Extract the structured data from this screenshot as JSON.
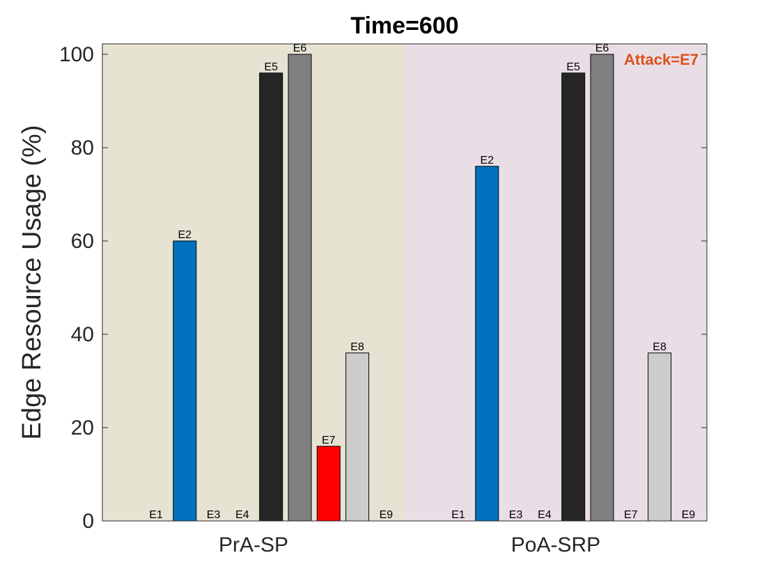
{
  "chart_data": {
    "type": "bar",
    "title": "Time=600",
    "ylabel": "Edge Resource Usage (%)",
    "xlabel": "",
    "ylim": [
      0,
      100
    ],
    "yticks": [
      0,
      20,
      40,
      60,
      80,
      100
    ],
    "grid": false,
    "groups": [
      {
        "label": "PrA-SP",
        "background": "#e6e3d2",
        "bars": [
          {
            "label": "E1",
            "value": 0,
            "color": "#ffffff"
          },
          {
            "label": "E2",
            "value": 60,
            "color": "#0072bd"
          },
          {
            "label": "E3",
            "value": 0,
            "color": "#ffffff"
          },
          {
            "label": "E4",
            "value": 0,
            "color": "#ffffff"
          },
          {
            "label": "E5",
            "value": 96,
            "color": "#262626"
          },
          {
            "label": "E6",
            "value": 100,
            "color": "#808080"
          },
          {
            "label": "E7",
            "value": 16,
            "color": "#ff0000"
          },
          {
            "label": "E8",
            "value": 36,
            "color": "#cccccc"
          },
          {
            "label": "E9",
            "value": 0,
            "color": "#ffffff"
          }
        ]
      },
      {
        "label": "PoA-SRP",
        "background": "#eadee6",
        "bars": [
          {
            "label": "E1",
            "value": 0,
            "color": "#ffffff"
          },
          {
            "label": "E2",
            "value": 76,
            "color": "#0072bd"
          },
          {
            "label": "E3",
            "value": 0,
            "color": "#ffffff"
          },
          {
            "label": "E4",
            "value": 0,
            "color": "#ffffff"
          },
          {
            "label": "E5",
            "value": 96,
            "color": "#262626"
          },
          {
            "label": "E6",
            "value": 100,
            "color": "#808080"
          },
          {
            "label": "E7",
            "value": 0,
            "color": "#ffffff"
          },
          {
            "label": "E8",
            "value": 36,
            "color": "#cccccc"
          },
          {
            "label": "E9",
            "value": 0,
            "color": "#ffffff"
          }
        ]
      }
    ],
    "annotation": {
      "text": "Attack=E7",
      "color": "#d95319"
    }
  }
}
